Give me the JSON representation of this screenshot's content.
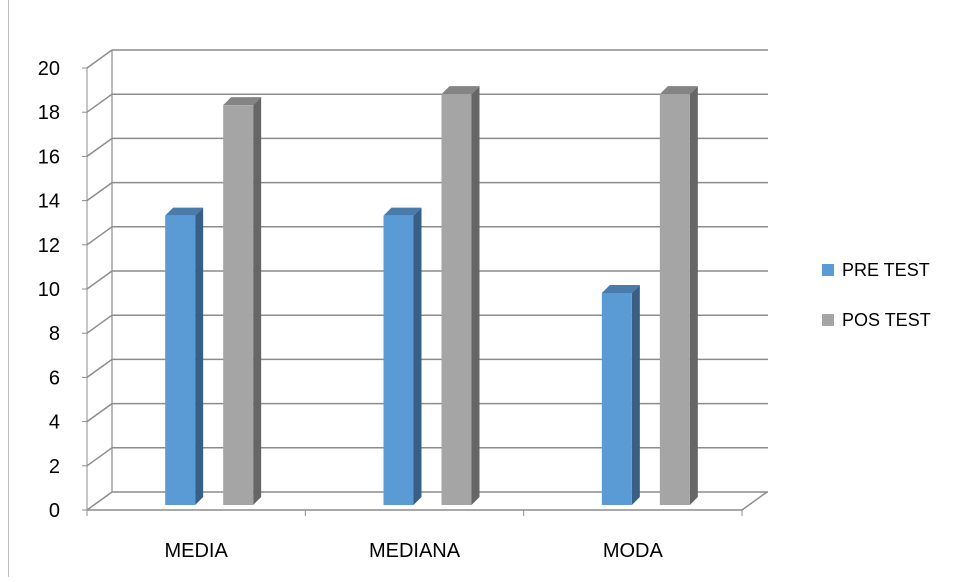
{
  "chart_data": {
    "type": "bar",
    "categories": [
      "MEDIA",
      "MEDIANA",
      "MODA"
    ],
    "series": [
      {
        "name": "PRE TEST",
        "values": [
          13.5,
          13.5,
          10
        ],
        "color": "#5b9bd5"
      },
      {
        "name": "POS TEST",
        "values": [
          18.5,
          19,
          19
        ],
        "color": "#a5a5a5"
      }
    ],
    "title": "",
    "xlabel": "",
    "ylabel": "",
    "ylim": [
      0,
      20
    ],
    "yticks": [
      "0",
      "2",
      "4",
      "6",
      "8",
      "10",
      "12",
      "14",
      "16",
      "18",
      "20"
    ],
    "grid": true,
    "legend_position": "right",
    "style": "3d-clustered-column"
  }
}
